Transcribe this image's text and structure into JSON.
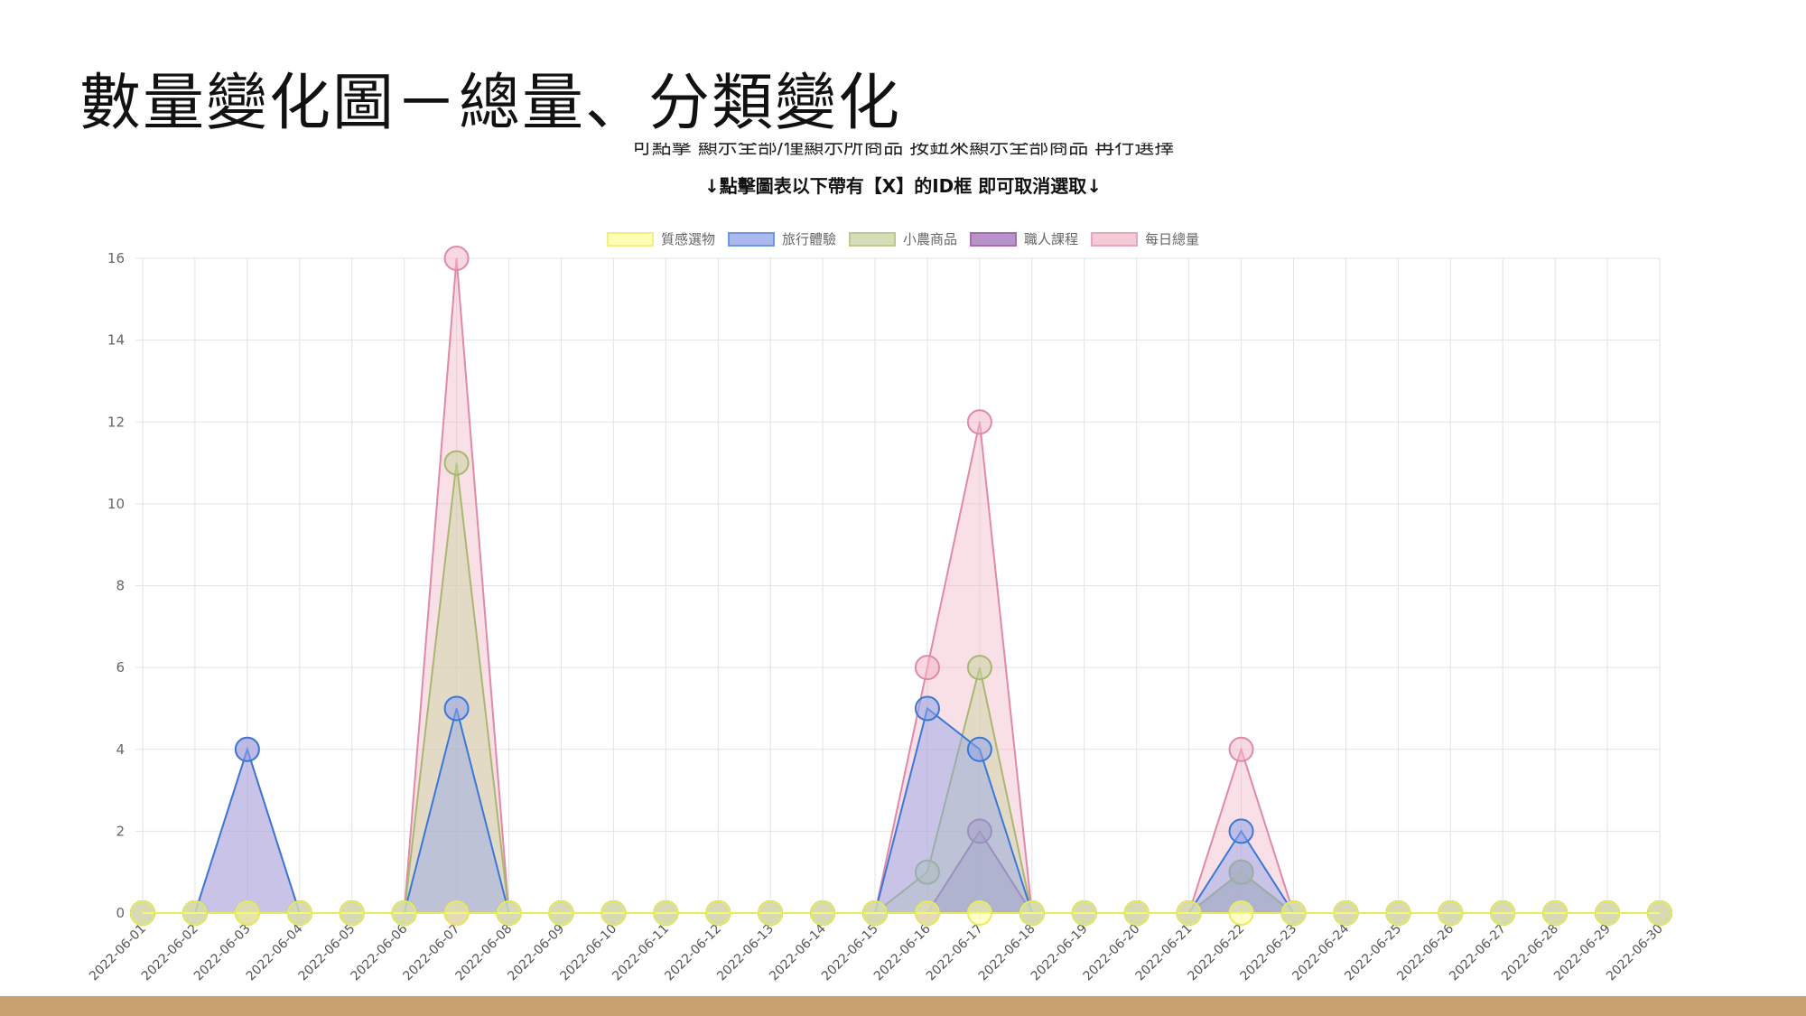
{
  "slide": {
    "title": "數量變化圖－總量、分類變化",
    "cut_line_text": "可點擊 顯示全部/僅顯示所商品 按鈕來顯示全部商品 再行選擇",
    "hint_text": "↓點擊圖表以下帶有【X】的ID框 即可取消選取↓"
  },
  "chart_data": {
    "type": "area",
    "x": [
      "2022-06-01",
      "2022-06-02",
      "2022-06-03",
      "2022-06-04",
      "2022-06-05",
      "2022-06-06",
      "2022-06-07",
      "2022-06-08",
      "2022-06-09",
      "2022-06-10",
      "2022-06-11",
      "2022-06-12",
      "2022-06-13",
      "2022-06-14",
      "2022-06-15",
      "2022-06-16",
      "2022-06-17",
      "2022-06-18",
      "2022-06-19",
      "2022-06-20",
      "2022-06-21",
      "2022-06-22",
      "2022-06-23",
      "2022-06-24",
      "2022-06-25",
      "2022-06-26",
      "2022-06-27",
      "2022-06-28",
      "2022-06-29",
      "2022-06-30"
    ],
    "ylim": [
      0,
      16
    ],
    "yticks": [
      0,
      2,
      4,
      6,
      8,
      10,
      12,
      14,
      16
    ],
    "grid": true,
    "legend_position": "top",
    "series": [
      {
        "name": "質感選物",
        "stroke": "#e9ec5a",
        "fill": "#ffff9a",
        "values": [
          0,
          0,
          0,
          0,
          0,
          0,
          0,
          0,
          0,
          0,
          0,
          0,
          0,
          0,
          0,
          0,
          0,
          0,
          0,
          0,
          0,
          0,
          0,
          0,
          0,
          0,
          0,
          0,
          0,
          0
        ]
      },
      {
        "name": "旅行體驗",
        "stroke": "#3a78d8",
        "fill": "#8fa3e8",
        "values": [
          0,
          0,
          4,
          0,
          0,
          0,
          5,
          0,
          0,
          0,
          0,
          0,
          0,
          0,
          0,
          5,
          4,
          0,
          0,
          0,
          0,
          2,
          0,
          0,
          0,
          0,
          0,
          0,
          0,
          0
        ]
      },
      {
        "name": "小農商品",
        "stroke": "#a8b870",
        "fill": "#c8d4a0",
        "values": [
          0,
          0,
          0,
          0,
          0,
          0,
          11,
          0,
          0,
          0,
          0,
          0,
          0,
          0,
          0,
          1,
          6,
          0,
          0,
          0,
          0,
          1,
          0,
          0,
          0,
          0,
          0,
          0,
          0,
          0
        ]
      },
      {
        "name": "職人課程",
        "stroke": "#8a3a9a",
        "fill": "#a070b8",
        "values": [
          0,
          0,
          0,
          0,
          0,
          0,
          0,
          0,
          0,
          0,
          0,
          0,
          0,
          0,
          0,
          0,
          2,
          0,
          0,
          0,
          0,
          1,
          0,
          0,
          0,
          0,
          0,
          0,
          0,
          0
        ]
      },
      {
        "name": "每日總量",
        "stroke": "#e08aa8",
        "fill": "#f2b8c8",
        "values": [
          0,
          0,
          4,
          0,
          0,
          0,
          16,
          0,
          0,
          0,
          0,
          0,
          0,
          0,
          0,
          6,
          12,
          0,
          0,
          0,
          0,
          4,
          0,
          0,
          0,
          0,
          0,
          0,
          0,
          0
        ]
      }
    ]
  }
}
